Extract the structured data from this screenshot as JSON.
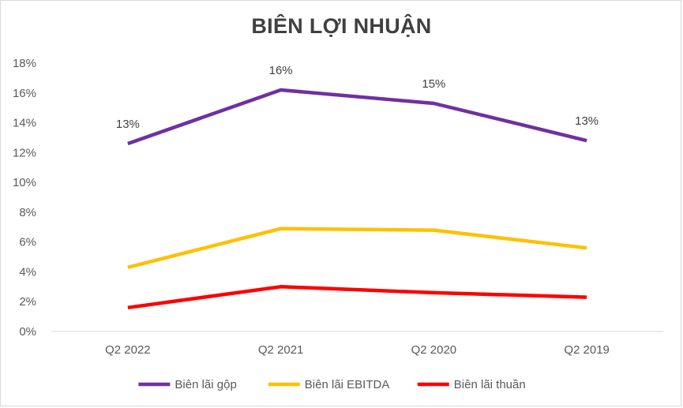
{
  "chart_data": {
    "type": "line",
    "title": "BIÊN LỢI NHUẬN",
    "xlabel": "",
    "ylabel": "",
    "categories": [
      "Q2 2022",
      "Q2 2021",
      "Q2 2020",
      "Q2 2019"
    ],
    "y_ticks": [
      "0%",
      "2%",
      "4%",
      "6%",
      "8%",
      "10%",
      "12%",
      "14%",
      "16%",
      "18%"
    ],
    "ylim": [
      0,
      18
    ],
    "grid": false,
    "legend_position": "bottom",
    "series": [
      {
        "name": "Biên lãi gộp",
        "color": "#7030a0",
        "values": [
          12.6,
          16.2,
          15.3,
          12.8
        ],
        "labels": [
          "13%",
          "16%",
          "15%",
          "13%"
        ]
      },
      {
        "name": "Biên lãi EBITDA",
        "color": "#ffc000",
        "values": [
          4.3,
          6.9,
          6.8,
          5.6
        ]
      },
      {
        "name": "Biên lãi thuần",
        "color": "#ff0000",
        "values": [
          1.6,
          3.0,
          2.6,
          2.3
        ]
      }
    ]
  }
}
